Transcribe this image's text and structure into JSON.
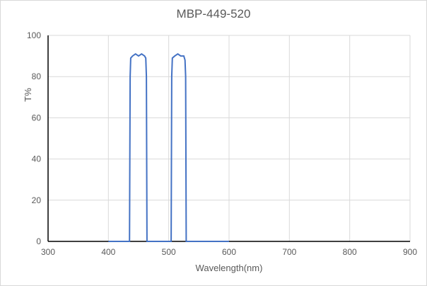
{
  "chart_data": {
    "type": "line",
    "title": "MBP-449-520",
    "xlabel": "Wavelength(nm)",
    "ylabel": "T%",
    "xlim": [
      300,
      900
    ],
    "ylim": [
      0,
      100
    ],
    "xticks": [
      300,
      400,
      500,
      600,
      700,
      800,
      900
    ],
    "yticks": [
      0,
      20,
      40,
      60,
      80,
      100
    ],
    "grid": true,
    "legend": null,
    "series": [
      {
        "name": "T%",
        "color": "#4472c4",
        "x": [
          400,
          435,
          436,
          437,
          440,
          445,
          450,
          455,
          460,
          462,
          463,
          464,
          465,
          504,
          505,
          506,
          510,
          515,
          520,
          525,
          527,
          528,
          529,
          600
        ],
        "y": [
          0,
          0,
          80,
          89,
          90,
          91,
          90,
          91,
          90,
          89,
          80,
          0,
          0,
          0,
          80,
          89,
          90,
          91,
          90,
          90,
          88,
          80,
          0,
          0
        ]
      }
    ],
    "passbands": [
      {
        "center_nm": 449,
        "start_nm": 436,
        "end_nm": 464,
        "peak_T": 90
      },
      {
        "center_nm": 517,
        "start_nm": 505,
        "end_nm": 529,
        "peak_T": 90
      }
    ]
  },
  "colors": {
    "line": "#4472c4",
    "grid": "#d9d9d9",
    "axis": "#000000",
    "text": "#595959",
    "border": "#d9d9d9"
  }
}
